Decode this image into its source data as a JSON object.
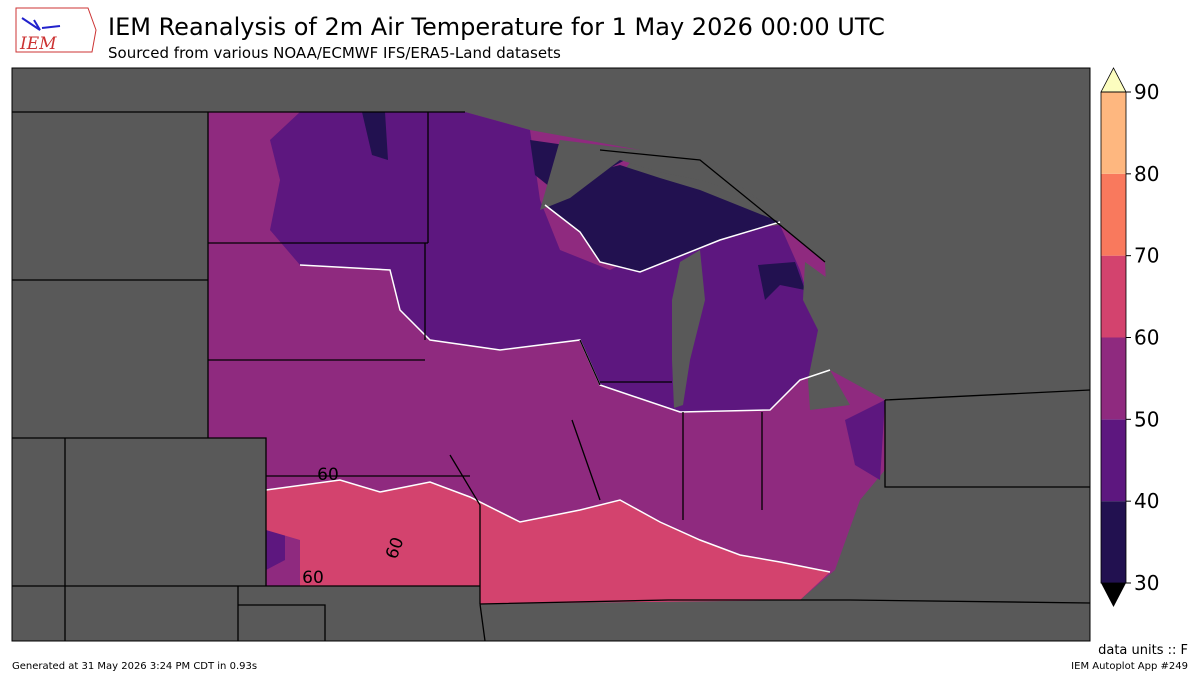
{
  "header": {
    "title": "IEM Reanalysis of 2m Air Temperature for 1 May 2026 00:00 UTC",
    "subtitle": "Sourced from various NOAA/ECMWF IFS/ERA5-Land datasets",
    "logo": "IEM"
  },
  "map": {
    "contour_labels": [
      "60",
      "60",
      "60"
    ]
  },
  "colorbar": {
    "ticks": [
      30,
      40,
      50,
      60,
      70,
      80,
      90
    ],
    "colors": [
      "#221150",
      "#5d177f",
      "#8f2a7f",
      "#d3436e",
      "#f9795d",
      "#feb77f"
    ],
    "under_color": "#000000",
    "over_color": "#fcfdbf",
    "units": "data units :: F"
  },
  "footer": {
    "generated": "Generated at 31 May 2026 3:24 PM CDT in 0.93s",
    "app": "IEM Autoplot App #249"
  }
}
